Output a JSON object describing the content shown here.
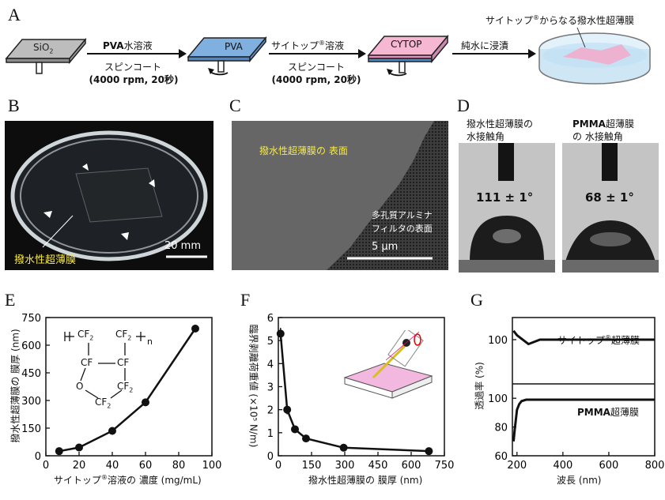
{
  "panel_labels": {
    "A": "A",
    "B": "B",
    "C": "C",
    "D": "D",
    "E": "E",
    "F": "F",
    "G": "G"
  },
  "panelA": {
    "substrate": "SiO",
    "substrate_sub": "2",
    "step1_top_bold": "PVA",
    "step1_top": "水溶液",
    "step1_bottom": "スピンコート",
    "step1_params": "(4000 rpm, 20秒)",
    "layer_pva": "PVA",
    "step2_top": "サイトップ",
    "step2_top_sup": "®",
    "step2_top_tail": "溶液",
    "step2_bottom": "スピンコート",
    "step2_params": "(4000 rpm, 20秒)",
    "layer_cytop": "CYTOP",
    "step3_top": "純水に浸漬",
    "final_caption_1": "サイトップ",
    "final_caption_sup": "®",
    "final_caption_2": "からなる撥水性超薄膜"
  },
  "panelB": {
    "film_label": "撥水性超薄膜",
    "scale": "20 mm"
  },
  "panelC": {
    "surface_label": "撥水性超薄膜の 表面",
    "filter_label_1": "多孔質アルミナ",
    "filter_label_2": "フィルタの表面",
    "scale": "5 µm"
  },
  "panelD": {
    "left_title_1": "撥水性超薄膜の",
    "left_title_2": "水接触角",
    "left_angle": "111 ± 1°",
    "right_title_bold": "PMMA",
    "right_title_1": "超薄膜",
    "right_title_2": "の 水接触角",
    "right_angle": "68 ± 1°"
  },
  "chart_data": [
    {
      "type": "line",
      "panel": "E",
      "x": [
        8,
        20,
        40,
        60,
        90
      ],
      "y": [
        25,
        45,
        135,
        290,
        690
      ],
      "xlabel_1": "サイトップ",
      "xlabel_sup": "®",
      "xlabel_2": "溶液の 濃度 (mg/mL)",
      "ylabel": "撥水性超薄膜の 膜厚 (nm)",
      "xlim": [
        0,
        100
      ],
      "ylim": [
        0,
        750
      ],
      "xticks": [
        "0",
        "20",
        "40",
        "60",
        "80",
        "100"
      ],
      "yticks": [
        "0",
        "150",
        "300",
        "450",
        "600",
        "750"
      ],
      "structure": {
        "cf2_a": "CF",
        "cf2_b": "CF",
        "cf_a": "CF",
        "cf_b": "CF",
        "o": "O",
        "cf2_c": "CF",
        "cf2_d": "CF",
        "sub2": "2",
        "n": "n"
      }
    },
    {
      "type": "line",
      "panel": "F",
      "x": [
        10,
        40,
        75,
        125,
        295,
        680
      ],
      "y": [
        5.3,
        2.0,
        1.15,
        0.75,
        0.35,
        0.2
      ],
      "xlabel": "撥水性超薄膜の 膜厚 (nm)",
      "ylabel": "臨界剥離荷重値 (×10⁵ N/m)",
      "xlim": [
        0,
        750
      ],
      "ylim": [
        0,
        6
      ],
      "xticks": [
        "0",
        "150",
        "300",
        "450",
        "600",
        "750"
      ],
      "yticks": [
        "0",
        "1",
        "2",
        "3",
        "4",
        "5",
        "6"
      ]
    },
    {
      "type": "line",
      "panel": "G",
      "xlabel": "波長 (nm)",
      "ylabel": "透過率 (%)",
      "xlim": [
        180,
        800
      ],
      "xticks": [
        "200",
        "400",
        "600",
        "800"
      ],
      "series": [
        {
          "name": "サイトップ®超薄膜",
          "x": [
            185,
            200,
            250,
            300,
            400,
            500,
            600,
            700,
            800
          ],
          "y": [
            102,
            101,
            99,
            100,
            100,
            100,
            100,
            100,
            100
          ],
          "ylim": [
            90,
            105
          ],
          "yticks": [
            "100"
          ]
        },
        {
          "name": "PMMA超薄膜",
          "x": [
            185,
            190,
            200,
            210,
            220,
            240,
            300,
            400,
            600,
            800
          ],
          "y": [
            70,
            78,
            92,
            96,
            98,
            99,
            99,
            99,
            99,
            99
          ],
          "ylim": [
            60,
            110
          ],
          "yticks": [
            "60",
            "80",
            "100"
          ]
        }
      ],
      "series_label_1": "サイトップ",
      "series_label_sup": "®",
      "series_label_2": "超薄膜",
      "series_label_pmma_bold": "PMMA",
      "series_label_pmma": "超薄膜"
    }
  ]
}
